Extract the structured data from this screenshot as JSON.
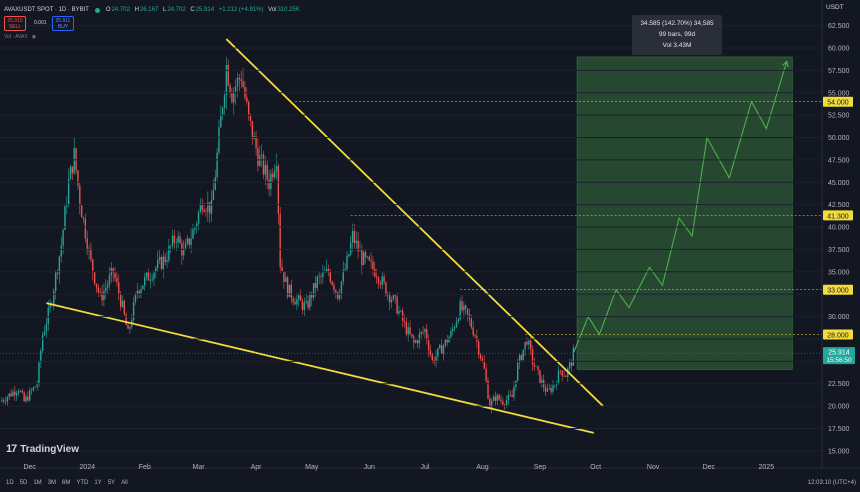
{
  "header": {
    "symbol": "AVAXUSDT SPOT · 1D · BYBIT",
    "open": "24.702",
    "high": "26.167",
    "low": "24.702",
    "close": "25.914",
    "change": "+1.212 (+4.91%)",
    "volume": "310.25K",
    "sell_price": "25.910",
    "sell_label": "SELL",
    "buy_price": "25.911",
    "buy_label": "BUY",
    "spread": "0.001",
    "indicator": "Vol · AVAX",
    "accent_up": "#26a69a",
    "accent_down": "#ef5350"
  },
  "brand": {
    "logo": "17",
    "name": "TradingView"
  },
  "ranges": [
    "1D",
    "5D",
    "1M",
    "3M",
    "6M",
    "YTD",
    "1Y",
    "5Y",
    "All"
  ],
  "clock": "12:03:10 (UTC+4)",
  "stat_box": {
    "line1": "34.585 (142.70%) 34,585",
    "line2": "99 bars, 99d",
    "line3": "Vol 3.43M"
  },
  "chart_data": {
    "type": "line",
    "y_axis_title": "USDT",
    "y_ticks": [
      "15.000",
      "17.500",
      "20.000",
      "22.500",
      "25.000",
      "27.500",
      "30.000",
      "32.500",
      "35.000",
      "37.500",
      "40.000",
      "42.500",
      "45.000",
      "47.500",
      "50.000",
      "52.500",
      "55.000",
      "57.500",
      "60.000",
      "62.500"
    ],
    "ylim": [
      14.2,
      63.8
    ],
    "x_ticks": [
      {
        "label": "Dec",
        "date": "2023-12-01"
      },
      {
        "label": "2024",
        "date": "2024-01-01"
      },
      {
        "label": "Feb",
        "date": "2024-02-01"
      },
      {
        "label": "Mar",
        "date": "2024-03-01"
      },
      {
        "label": "Apr",
        "date": "2024-04-01"
      },
      {
        "label": "May",
        "date": "2024-05-01"
      },
      {
        "label": "Jun",
        "date": "2024-06-01"
      },
      {
        "label": "Jul",
        "date": "2024-07-01"
      },
      {
        "label": "Aug",
        "date": "2024-08-01"
      },
      {
        "label": "Sep",
        "date": "2024-09-01"
      },
      {
        "label": "Oct",
        "date": "2024-10-01"
      },
      {
        "label": "Nov",
        "date": "2024-11-01"
      },
      {
        "label": "Dec",
        "date": "2024-12-01"
      },
      {
        "label": "2025",
        "date": "2025-01-01"
      }
    ],
    "price_series": [
      [
        "2023-11-15",
        20.5
      ],
      [
        "2023-11-25",
        22.0
      ],
      [
        "2023-11-28",
        20.5
      ],
      [
        "2023-12-05",
        22.5
      ],
      [
        "2023-12-08",
        28.0
      ],
      [
        "2023-12-12",
        31.0
      ],
      [
        "2023-12-18",
        38.0
      ],
      [
        "2023-12-22",
        45.0
      ],
      [
        "2023-12-25",
        48.0
      ],
      [
        "2023-12-28",
        43.0
      ],
      [
        "2024-01-03",
        36.0
      ],
      [
        "2024-01-08",
        32.0
      ],
      [
        "2024-01-15",
        35.0
      ],
      [
        "2024-01-20",
        31.0
      ],
      [
        "2024-01-23",
        28.0
      ],
      [
        "2024-01-28",
        33.0
      ],
      [
        "2024-02-05",
        35.0
      ],
      [
        "2024-02-12",
        36.5
      ],
      [
        "2024-02-18",
        39.0
      ],
      [
        "2024-02-22",
        37.0
      ],
      [
        "2024-02-28",
        40.0
      ],
      [
        "2024-03-03",
        43.0
      ],
      [
        "2024-03-08",
        42.0
      ],
      [
        "2024-03-12",
        50.0
      ],
      [
        "2024-03-16",
        58.0
      ],
      [
        "2024-03-19",
        55.0
      ],
      [
        "2024-03-24",
        57.0
      ],
      [
        "2024-03-28",
        52.0
      ],
      [
        "2024-04-02",
        48.0
      ],
      [
        "2024-04-08",
        45.0
      ],
      [
        "2024-04-12",
        48.0
      ],
      [
        "2024-04-14",
        36.0
      ],
      [
        "2024-04-18",
        33.0
      ],
      [
        "2024-04-22",
        32.0
      ],
      [
        "2024-04-28",
        31.0
      ],
      [
        "2024-05-04",
        34.0
      ],
      [
        "2024-05-10",
        35.0
      ],
      [
        "2024-05-15",
        32.5
      ],
      [
        "2024-05-20",
        36.0
      ],
      [
        "2024-05-23",
        39.0
      ],
      [
        "2024-05-28",
        36.5
      ],
      [
        "2024-06-05",
        35.0
      ],
      [
        "2024-06-10",
        33.0
      ],
      [
        "2024-06-15",
        31.5
      ],
      [
        "2024-06-20",
        29.0
      ],
      [
        "2024-06-25",
        27.0
      ],
      [
        "2024-07-01",
        28.5
      ],
      [
        "2024-07-05",
        25.0
      ],
      [
        "2024-07-10",
        26.5
      ],
      [
        "2024-07-15",
        28.0
      ],
      [
        "2024-07-20",
        31.0
      ],
      [
        "2024-07-24",
        30.0
      ],
      [
        "2024-07-28",
        28.0
      ],
      [
        "2024-08-02",
        24.0
      ],
      [
        "2024-08-05",
        20.0
      ],
      [
        "2024-08-08",
        21.0
      ],
      [
        "2024-08-12",
        20.5
      ],
      [
        "2024-08-17",
        21.0
      ],
      [
        "2024-08-20",
        24.5
      ],
      [
        "2024-08-25",
        27.5
      ],
      [
        "2024-08-28",
        25.0
      ],
      [
        "2024-09-01",
        23.0
      ],
      [
        "2024-09-05",
        21.5
      ],
      [
        "2024-09-09",
        22.5
      ],
      [
        "2024-09-12",
        24.0
      ],
      [
        "2024-09-15",
        23.5
      ],
      [
        "2024-09-18",
        25.0
      ],
      [
        "2024-09-19",
        25.914
      ]
    ],
    "projection": [
      [
        "2024-09-19",
        25.9
      ],
      [
        "2024-09-27",
        30.0
      ],
      [
        "2024-10-03",
        28.0
      ],
      [
        "2024-10-12",
        33.0
      ],
      [
        "2024-10-19",
        31.0
      ],
      [
        "2024-10-30",
        35.5
      ],
      [
        "2024-11-06",
        33.5
      ],
      [
        "2024-11-15",
        41.0
      ],
      [
        "2024-11-22",
        39.0
      ],
      [
        "2024-11-30",
        50.0
      ],
      [
        "2024-12-12",
        45.5
      ],
      [
        "2024-12-24",
        54.0
      ],
      [
        "2025-01-01",
        51.0
      ],
      [
        "2025-01-12",
        58.5
      ]
    ],
    "trendlines": [
      {
        "from": [
          "2024-03-16",
          61.0
        ],
        "to": [
          "2024-10-05",
          20.0
        ]
      },
      {
        "from": [
          "2023-12-10",
          31.5
        ],
        "to": [
          "2024-09-30",
          17.0
        ]
      }
    ],
    "levels": [
      {
        "value": 54.0,
        "label": "54.000",
        "from": "2024-04-22"
      },
      {
        "value": 41.3,
        "label": "41.300",
        "from": "2024-05-22"
      },
      {
        "value": 33.0,
        "label": "33.000",
        "from": "2024-07-20"
      },
      {
        "value": 28.0,
        "label": "28.000",
        "from": "2024-08-24"
      }
    ],
    "current_price": {
      "value": 25.914,
      "label": "25.914",
      "countdown": "15:56:50"
    },
    "target_zone": {
      "from_date": "2024-09-21",
      "to_date": "2025-01-15",
      "low": 24.1,
      "high": 59.0
    },
    "colors": {
      "trend": "#f2dc3c",
      "projection": "#4caf50",
      "zone": "#2f5a35",
      "level": "#f2dc3c",
      "current": "#26a69a",
      "bull": "#26a69a",
      "bear": "#ef5350"
    }
  }
}
